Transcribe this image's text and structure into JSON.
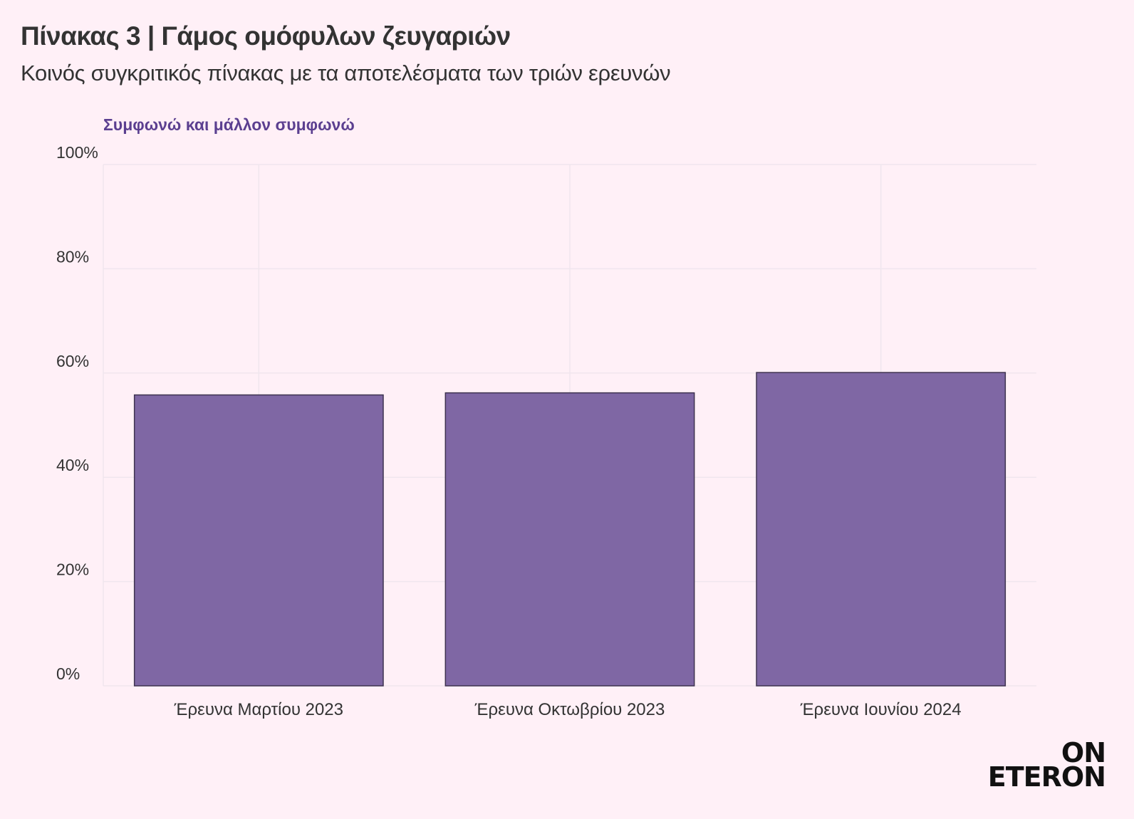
{
  "chart_title": "Πίνακας 3 | Γάμος ομόφυλων ζευγαριών",
  "chart_subtitle": "Κοινός συγκριτικός πίνακας με τα αποτελέσματα των τριών ερευνών",
  "logo": {
    "line1": "ON",
    "line2": "ETERON"
  },
  "colors": {
    "background": "#fff0f7",
    "bar_fill": "#7f67a4",
    "bar_stroke": "#3e3350",
    "series_label": "#5b3f90",
    "grid": "#f0e6ee",
    "text": "#333333"
  },
  "chart_data": {
    "type": "bar",
    "title": "Πίνακας 3 | Γάμος ομόφυλων ζευγαριών",
    "subtitle": "Κοινός συγκριτικός πίνακας με τα αποτελέσματα των τριών ερευνών",
    "categories": [
      "Έρευνα Μαρτίου 2023",
      "Έρευνα Οκτωβρίου 2023",
      "Έρευνα Ιουνίου 2024"
    ],
    "series": [
      {
        "name": "Συμφωνώ και μάλλον συμφωνώ",
        "values": [
          55.8,
          56.2,
          60.1
        ]
      }
    ],
    "ylim": [
      0,
      100
    ],
    "yticks": [
      0,
      20,
      40,
      60,
      80,
      100
    ],
    "ytick_labels": [
      "0%",
      "20%",
      "40%",
      "60%",
      "80%",
      "100%"
    ],
    "xlabel": "",
    "ylabel": "",
    "grid": true,
    "legend": "top-left"
  }
}
